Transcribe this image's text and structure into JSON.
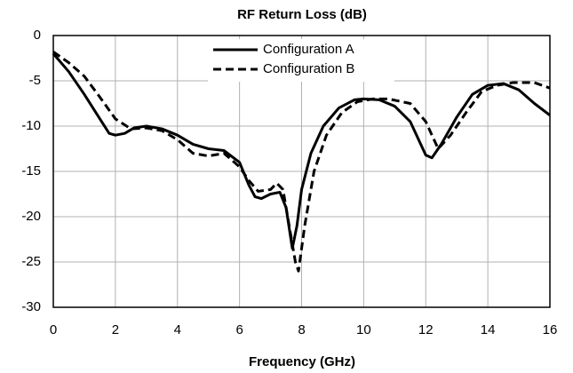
{
  "chart_data": {
    "type": "line",
    "title": "RF Return Loss (dB)",
    "xlabel": "Frequency (GHz)",
    "xlim": [
      0,
      16
    ],
    "xticks": [
      0,
      2,
      4,
      6,
      8,
      10,
      12,
      14,
      16
    ],
    "ylim": [
      -30,
      0
    ],
    "yticks": [
      0,
      -5,
      -10,
      -15,
      -20,
      -25,
      -30
    ],
    "grid": true,
    "series": [
      {
        "name": "Configuration A",
        "color": "#000000",
        "style": "solid",
        "x": [
          0,
          0.5,
          1,
          1.5,
          1.8,
          2,
          2.3,
          2.6,
          3,
          3.5,
          4,
          4.5,
          5,
          5.5,
          6,
          6.3,
          6.5,
          6.7,
          7,
          7.3,
          7.5,
          7.7,
          7.85,
          8,
          8.3,
          8.7,
          9.2,
          9.7,
          10,
          10.5,
          11,
          11.5,
          12,
          12.2,
          12.5,
          13,
          13.5,
          14,
          14.5,
          15,
          15.5,
          16
        ],
        "values": [
          -2,
          -4,
          -6.5,
          -9.2,
          -10.8,
          -11,
          -10.8,
          -10.2,
          -10,
          -10.3,
          -11,
          -12,
          -12.5,
          -12.7,
          -14,
          -16.5,
          -17.8,
          -18,
          -17.5,
          -17.3,
          -19,
          -23.5,
          -21,
          -17,
          -13,
          -10,
          -8,
          -7.1,
          -7,
          -7.1,
          -7.8,
          -9.5,
          -13.2,
          -13.5,
          -12,
          -9,
          -6.5,
          -5.5,
          -5.3,
          -6,
          -7.5,
          -8.8
        ]
      },
      {
        "name": "Configuration B",
        "color": "#000000",
        "style": "dashed",
        "x": [
          0,
          0.5,
          1,
          1.5,
          2,
          2.5,
          3,
          3.5,
          4,
          4.5,
          5,
          5.5,
          6,
          6.3,
          6.6,
          7,
          7.2,
          7.4,
          7.6,
          7.8,
          7.9,
          8.1,
          8.4,
          8.8,
          9.3,
          9.8,
          10.3,
          10.8,
          11.5,
          12,
          12.4,
          12.8,
          13.3,
          13.8,
          14.3,
          14.8,
          15.5,
          16
        ],
        "values": [
          -1.8,
          -3,
          -4.5,
          -6.8,
          -9.2,
          -10.3,
          -10.2,
          -10.5,
          -11.5,
          -13,
          -13.3,
          -13,
          -14.5,
          -16,
          -17.2,
          -17,
          -16.3,
          -17,
          -21,
          -25,
          -26,
          -21,
          -15,
          -11,
          -8.5,
          -7.3,
          -7,
          -7,
          -7.5,
          -9.5,
          -12.5,
          -11,
          -8.5,
          -6.2,
          -5.5,
          -5.2,
          -5.2,
          -5.8
        ]
      }
    ]
  }
}
